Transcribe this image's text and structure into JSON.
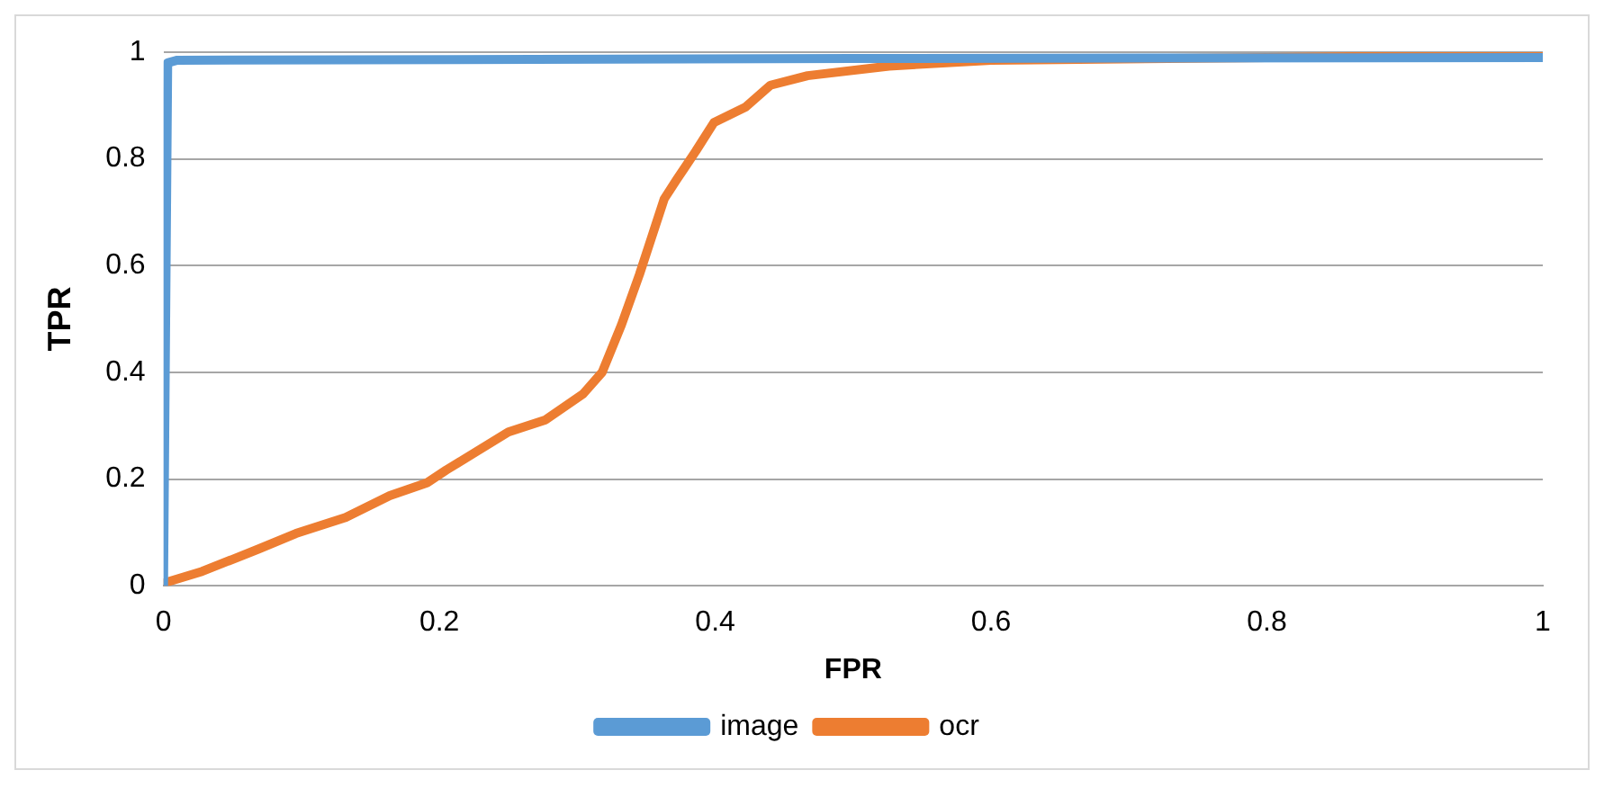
{
  "chart_data": {
    "type": "line",
    "xlabel": "FPR",
    "ylabel": "TPR",
    "xlim": [
      0,
      1
    ],
    "xticks": [
      0,
      0.2,
      0.4,
      0.6,
      0.8,
      1
    ],
    "ylim": [
      0,
      1
    ],
    "yticks": [
      0,
      0.2,
      0.4,
      0.6,
      0.8,
      1
    ],
    "grid": "y",
    "legend": "bottom",
    "marker": "none",
    "line_style": "solid",
    "series": [
      {
        "name": "image",
        "color": "#5b9bd5",
        "x": [
          0,
          0.003,
          0.01,
          0.5,
          1
        ],
        "values": [
          0,
          0.98,
          0.985,
          0.988,
          0.99
        ]
      },
      {
        "name": "ocr",
        "color": "#ed7d31",
        "x": [
          0,
          0.028,
          0.069,
          0.096,
          0.132,
          0.164,
          0.191,
          0.205,
          0.25,
          0.277,
          0.304,
          0.318,
          0.332,
          0.345,
          0.354,
          0.363,
          0.372,
          0.386,
          0.399,
          0.422,
          0.44,
          0.467,
          0.526,
          0.6,
          0.8,
          1
        ],
        "values": [
          0.005,
          0.027,
          0.069,
          0.098,
          0.128,
          0.169,
          0.193,
          0.217,
          0.288,
          0.311,
          0.359,
          0.4,
          0.489,
          0.583,
          0.654,
          0.725,
          0.761,
          0.815,
          0.868,
          0.897,
          0.938,
          0.956,
          0.974,
          0.985,
          0.99,
          0.995
        ]
      }
    ]
  }
}
